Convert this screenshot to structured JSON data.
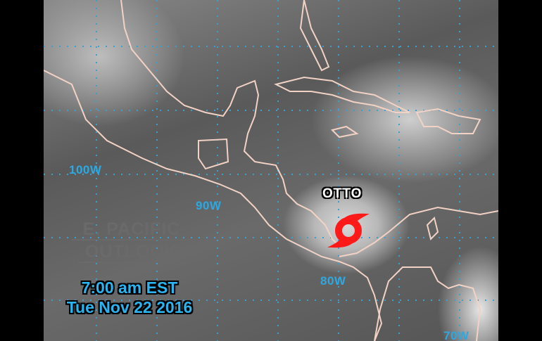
{
  "map": {
    "title_line1": "E. PACIFIC",
    "title_line2": "OUTLOOK",
    "time": "7:00 am EST",
    "date": "Tue Nov 22 2016",
    "storm": {
      "name": "OTTO",
      "icon": "hurricane-icon",
      "color": "#ff1a1a"
    },
    "longitude_labels": [
      "100W",
      "90W",
      "80W",
      "70W"
    ],
    "label_color": "#2ea8e0",
    "coastline_color": "#f2d2c4"
  }
}
